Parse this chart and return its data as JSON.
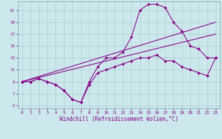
{
  "xlabel": "Windchill (Refroidissement éolien,°C)",
  "bg_color": "#cce8ec",
  "grid_color": "#aacccc",
  "line_color": "#880088",
  "xlim": [
    -0.5,
    23.5
  ],
  "ylim": [
    4.5,
    22.5
  ],
  "xticks": [
    0,
    1,
    2,
    3,
    4,
    5,
    6,
    7,
    8,
    9,
    10,
    11,
    12,
    13,
    14,
    15,
    16,
    17,
    18,
    19,
    20,
    21,
    22,
    23
  ],
  "yticks": [
    5,
    7,
    9,
    11,
    13,
    15,
    17,
    19,
    21
  ],
  "line1_x": [
    0,
    1,
    2,
    3,
    4,
    5,
    6,
    7,
    8,
    9,
    10,
    11,
    12,
    13,
    14,
    15,
    16,
    17,
    18,
    19,
    20,
    21,
    22,
    23
  ],
  "line1_y": [
    9,
    9,
    9.5,
    9,
    8.5,
    7.5,
    6,
    5.5,
    9,
    11.5,
    13,
    13,
    14,
    16.5,
    21,
    22,
    22,
    21.5,
    19,
    17.5,
    15,
    14.5,
    13,
    13
  ],
  "line2_x": [
    0,
    23
  ],
  "line2_y": [
    9,
    19
  ],
  "line3_x": [
    0,
    23
  ],
  "line3_y": [
    9,
    17
  ],
  "line4_x": [
    0,
    1,
    2,
    3,
    4,
    5,
    6,
    7,
    8,
    9,
    10,
    11,
    12,
    13,
    14,
    15,
    16,
    17,
    18,
    19,
    20,
    21,
    22,
    23
  ],
  "line4_y": [
    9,
    9,
    9.5,
    9,
    8.5,
    7.5,
    6,
    5.5,
    8.5,
    10.5,
    11,
    11.5,
    12,
    12.5,
    13,
    13,
    13.5,
    12.5,
    12.5,
    11.5,
    11,
    10.5,
    10,
    13
  ]
}
